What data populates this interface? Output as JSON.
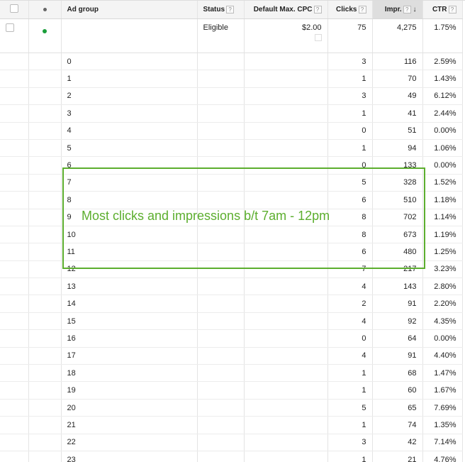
{
  "header": {
    "ad_group": "Ad group",
    "status": "Status",
    "cpc": "Default Max. CPC",
    "clicks": "Clicks",
    "impr": "Impr.",
    "ctr": "CTR",
    "help": "?",
    "sort_icon": "↓"
  },
  "summary": {
    "status": "Eligible",
    "cpc": "$2.00",
    "clicks": "75",
    "impr": "4,275",
    "ctr": "1.75%",
    "status_color": "#1a9e3a"
  },
  "rows": [
    {
      "h": "0",
      "clicks": "3",
      "impr": "116",
      "ctr": "2.59%"
    },
    {
      "h": "1",
      "clicks": "1",
      "impr": "70",
      "ctr": "1.43%"
    },
    {
      "h": "2",
      "clicks": "3",
      "impr": "49",
      "ctr": "6.12%"
    },
    {
      "h": "3",
      "clicks": "1",
      "impr": "41",
      "ctr": "2.44%"
    },
    {
      "h": "4",
      "clicks": "0",
      "impr": "51",
      "ctr": "0.00%"
    },
    {
      "h": "5",
      "clicks": "1",
      "impr": "94",
      "ctr": "1.06%"
    },
    {
      "h": "6",
      "clicks": "0",
      "impr": "133",
      "ctr": "0.00%"
    },
    {
      "h": "7",
      "clicks": "5",
      "impr": "328",
      "ctr": "1.52%"
    },
    {
      "h": "8",
      "clicks": "6",
      "impr": "510",
      "ctr": "1.18%"
    },
    {
      "h": "9",
      "clicks": "8",
      "impr": "702",
      "ctr": "1.14%"
    },
    {
      "h": "10",
      "clicks": "8",
      "impr": "673",
      "ctr": "1.19%"
    },
    {
      "h": "11",
      "clicks": "6",
      "impr": "480",
      "ctr": "1.25%"
    },
    {
      "h": "12",
      "clicks": "7",
      "impr": "217",
      "ctr": "3.23%"
    },
    {
      "h": "13",
      "clicks": "4",
      "impr": "143",
      "ctr": "2.80%"
    },
    {
      "h": "14",
      "clicks": "2",
      "impr": "91",
      "ctr": "2.20%"
    },
    {
      "h": "15",
      "clicks": "4",
      "impr": "92",
      "ctr": "4.35%"
    },
    {
      "h": "16",
      "clicks": "0",
      "impr": "64",
      "ctr": "0.00%"
    },
    {
      "h": "17",
      "clicks": "4",
      "impr": "91",
      "ctr": "4.40%"
    },
    {
      "h": "18",
      "clicks": "1",
      "impr": "68",
      "ctr": "1.47%"
    },
    {
      "h": "19",
      "clicks": "1",
      "impr": "60",
      "ctr": "1.67%"
    },
    {
      "h": "20",
      "clicks": "5",
      "impr": "65",
      "ctr": "7.69%"
    },
    {
      "h": "21",
      "clicks": "1",
      "impr": "74",
      "ctr": "1.35%"
    },
    {
      "h": "22",
      "clicks": "3",
      "impr": "42",
      "ctr": "7.14%"
    },
    {
      "h": "23",
      "clicks": "1",
      "impr": "21",
      "ctr": "4.76%"
    }
  ],
  "annotation": {
    "text": "Most clicks and impressions b/t 7am - 12pm",
    "color": "#5cae2e"
  }
}
